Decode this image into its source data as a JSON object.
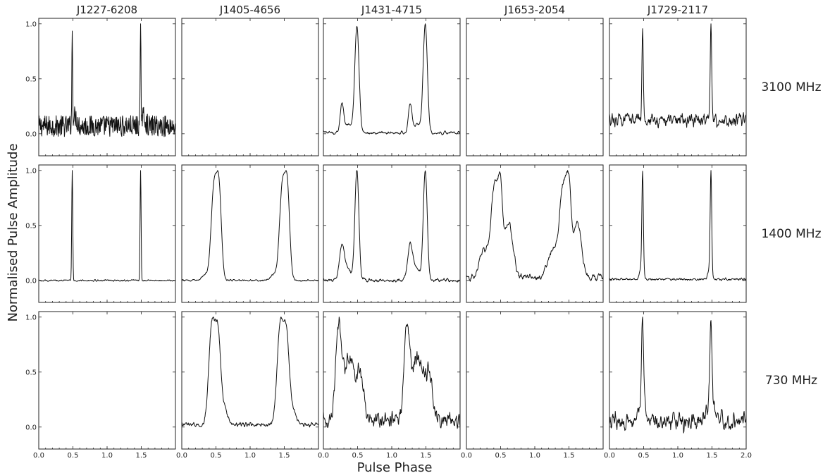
{
  "chart_data": {
    "type": "line",
    "xlabel": "Pulse Phase",
    "ylabel": "Normalised Pulse Amplitude",
    "xlim": [
      0.0,
      2.0
    ],
    "ylim": [
      -0.2,
      1.05
    ],
    "x_ticks": [
      "0.0",
      "0.5",
      "1.0",
      "1.5",
      "2.0"
    ],
    "y_ticks": [
      "0.0",
      "0.5",
      "1.0"
    ],
    "pulsars": [
      "J1227-6208",
      "J1405-4656",
      "J1431-4715",
      "J1653-2054",
      "J1729-2117"
    ],
    "frequencies": [
      "3100 MHz",
      "1400 MHz",
      "730 MHz"
    ],
    "profiles": [
      {
        "pulsar": "J1227-6208",
        "frequency": "3100 MHz",
        "present": true,
        "components": [
          {
            "center": 0.49,
            "width": 0.006,
            "amp": 0.92
          },
          {
            "center": 0.53,
            "width": 0.03,
            "amp": 0.1
          }
        ],
        "baseline": 0.08,
        "noise": 0.11,
        "smooth": 1
      },
      {
        "pulsar": "J1405-4656",
        "frequency": "3100 MHz",
        "present": false
      },
      {
        "pulsar": "J1431-4715",
        "frequency": "3100 MHz",
        "present": true,
        "components": [
          {
            "center": 0.49,
            "width": 0.03,
            "amp": 0.97
          },
          {
            "center": 0.27,
            "width": 0.025,
            "amp": 0.27
          },
          {
            "center": 0.37,
            "width": 0.04,
            "amp": 0.08
          }
        ],
        "baseline": 0.01,
        "noise": 0.025,
        "smooth": 3
      },
      {
        "pulsar": "J1653-2054",
        "frequency": "3100 MHz",
        "present": false
      },
      {
        "pulsar": "J1729-2117",
        "frequency": "3100 MHz",
        "present": true,
        "components": [
          {
            "center": 0.485,
            "width": 0.01,
            "amp": 0.9
          }
        ],
        "baseline": 0.12,
        "noise": 0.08,
        "smooth": 2
      },
      {
        "pulsar": "J1227-6208",
        "frequency": "1400 MHz",
        "present": true,
        "components": [
          {
            "center": 0.49,
            "width": 0.006,
            "amp": 0.99
          }
        ],
        "baseline": 0.0,
        "noise": 0.008,
        "smooth": 2
      },
      {
        "pulsar": "J1405-4656",
        "frequency": "1400 MHz",
        "present": true,
        "components": [
          {
            "center": 0.47,
            "width": 0.04,
            "amp": 0.9
          },
          {
            "center": 0.545,
            "width": 0.035,
            "amp": 0.86
          },
          {
            "center": 0.35,
            "width": 0.05,
            "amp": 0.06
          }
        ],
        "baseline": 0.0,
        "noise": 0.012,
        "smooth": 2
      },
      {
        "pulsar": "J1431-4715",
        "frequency": "1400 MHz",
        "present": true,
        "components": [
          {
            "center": 0.49,
            "width": 0.028,
            "amp": 0.97
          },
          {
            "center": 0.27,
            "width": 0.035,
            "amp": 0.3
          },
          {
            "center": 0.36,
            "width": 0.05,
            "amp": 0.1
          }
        ],
        "baseline": 0.0,
        "noise": 0.03,
        "smooth": 3
      },
      {
        "pulsar": "J1653-2054",
        "frequency": "1400 MHz",
        "present": true,
        "components": [
          {
            "center": 0.42,
            "width": 0.06,
            "amp": 0.72
          },
          {
            "center": 0.5,
            "width": 0.03,
            "amp": 0.45
          },
          {
            "center": 0.62,
            "width": 0.06,
            "amp": 0.42
          },
          {
            "center": 0.25,
            "width": 0.06,
            "amp": 0.2
          }
        ],
        "baseline": 0.02,
        "noise": 0.05,
        "smooth": 3
      },
      {
        "pulsar": "J1729-2117",
        "frequency": "1400 MHz",
        "present": true,
        "components": [
          {
            "center": 0.485,
            "width": 0.01,
            "amp": 0.95
          },
          {
            "center": 0.47,
            "width": 0.025,
            "amp": 0.12
          }
        ],
        "baseline": 0.01,
        "noise": 0.015,
        "smooth": 2
      },
      {
        "pulsar": "J1227-6208",
        "frequency": "730 MHz",
        "present": false
      },
      {
        "pulsar": "J1405-4656",
        "frequency": "730 MHz",
        "present": true,
        "components": [
          {
            "center": 0.44,
            "width": 0.045,
            "amp": 0.82
          },
          {
            "center": 0.53,
            "width": 0.04,
            "amp": 0.7
          },
          {
            "center": 0.62,
            "width": 0.05,
            "amp": 0.12
          }
        ],
        "baseline": 0.02,
        "noise": 0.025,
        "smooth": 2
      },
      {
        "pulsar": "J1431-4715",
        "frequency": "730 MHz",
        "present": true,
        "components": [
          {
            "center": 0.22,
            "width": 0.04,
            "amp": 0.68
          },
          {
            "center": 0.38,
            "width": 0.09,
            "amp": 0.5
          },
          {
            "center": 0.55,
            "width": 0.05,
            "amp": 0.3
          }
        ],
        "baseline": 0.05,
        "noise": 0.09,
        "smooth": 2
      },
      {
        "pulsar": "J1653-2054",
        "frequency": "730 MHz",
        "present": false
      },
      {
        "pulsar": "J1729-2117",
        "frequency": "730 MHz",
        "present": true,
        "components": [
          {
            "center": 0.485,
            "width": 0.015,
            "amp": 0.78
          },
          {
            "center": 0.48,
            "width": 0.05,
            "amp": 0.15
          }
        ],
        "baseline": 0.05,
        "noise": 0.11,
        "smooth": 2
      }
    ]
  }
}
